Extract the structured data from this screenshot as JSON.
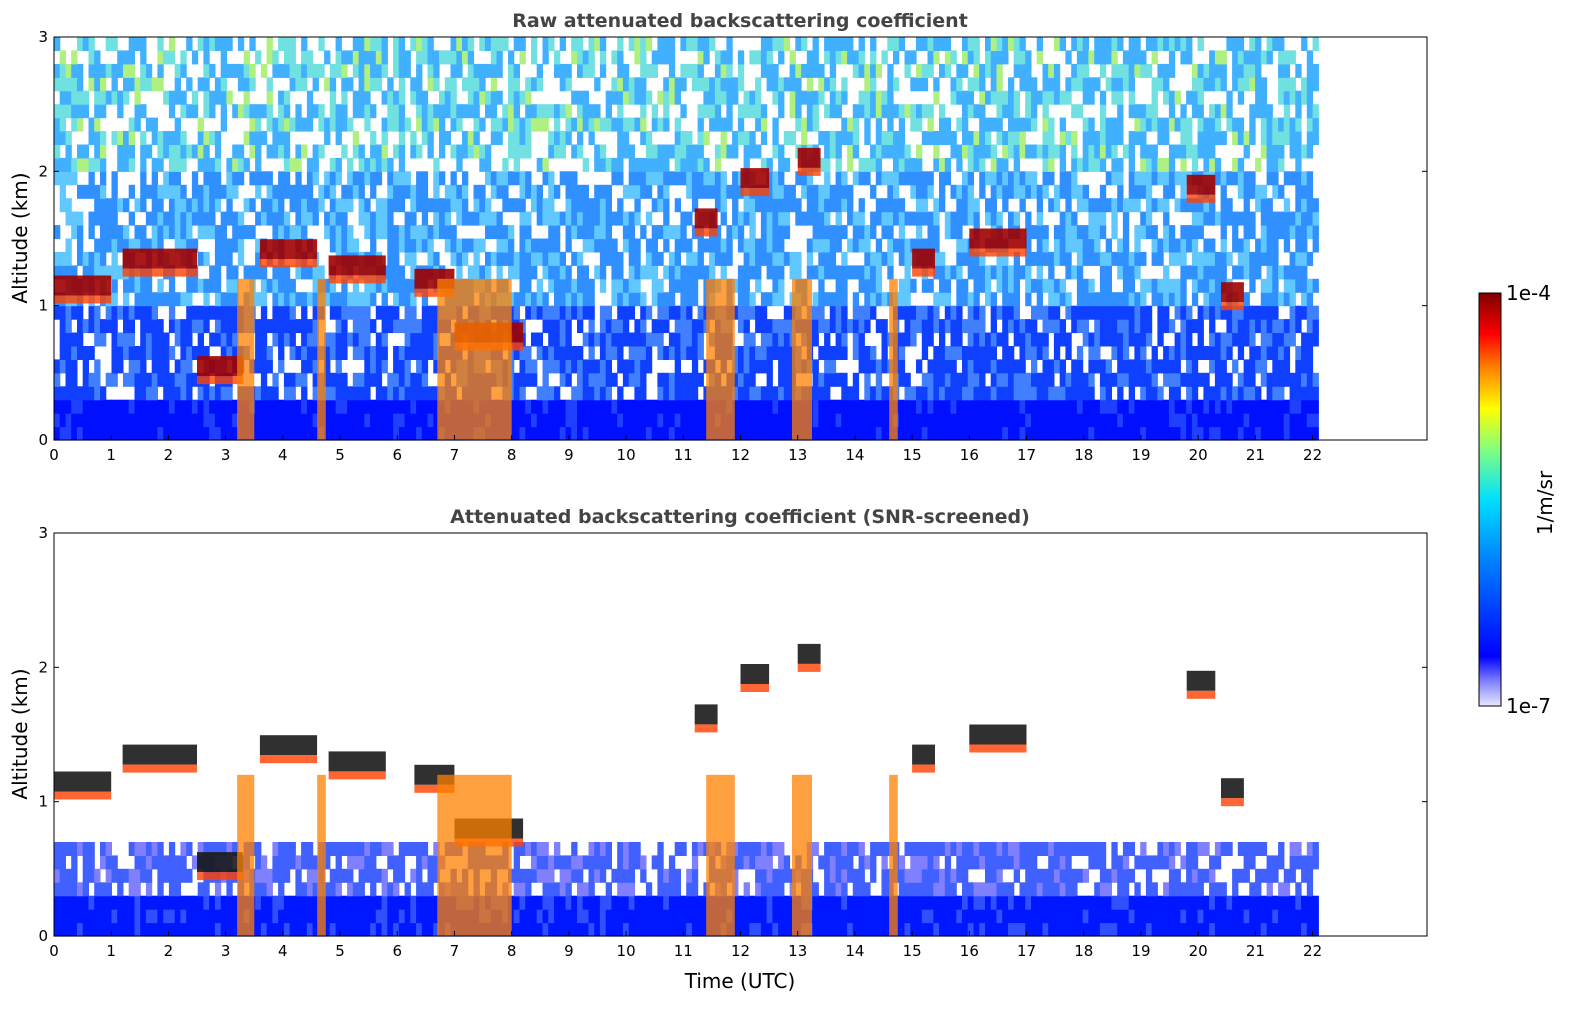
{
  "chart_data": [
    {
      "type": "heatmap",
      "title": "Raw attenuated backscattering coefficient",
      "xlabel": "",
      "ylabel": "Altitude (km)",
      "xlim": [
        0,
        24
      ],
      "ylim": [
        0,
        3
      ],
      "x_ticks": [
        0,
        1,
        2,
        3,
        4,
        5,
        6,
        7,
        8,
        9,
        10,
        11,
        12,
        13,
        14,
        15,
        16,
        17,
        18,
        19,
        20,
        21,
        22
      ],
      "y_ticks": [
        0,
        1,
        2,
        3
      ],
      "data_end_hour": 22.1,
      "grid": false,
      "features": [
        {
          "t_start": 0.0,
          "t_end": 1.0,
          "altitude_km": 1.15
        },
        {
          "t_start": 1.2,
          "t_end": 2.5,
          "altitude_km": 1.35
        },
        {
          "t_start": 2.5,
          "t_end": 3.3,
          "altitude_km": 0.55
        },
        {
          "t_start": 3.6,
          "t_end": 4.6,
          "altitude_km": 1.42
        },
        {
          "t_start": 4.8,
          "t_end": 5.8,
          "altitude_km": 1.3
        },
        {
          "t_start": 6.3,
          "t_end": 7.0,
          "altitude_km": 1.2
        },
        {
          "t_start": 7.0,
          "t_end": 8.2,
          "altitude_km": 0.8
        },
        {
          "t_start": 11.2,
          "t_end": 11.6,
          "altitude_km": 1.65
        },
        {
          "t_start": 12.0,
          "t_end": 12.5,
          "altitude_km": 1.95
        },
        {
          "t_start": 13.0,
          "t_end": 13.4,
          "altitude_km": 2.1
        },
        {
          "t_start": 15.0,
          "t_end": 15.4,
          "altitude_km": 1.35
        },
        {
          "t_start": 16.0,
          "t_end": 17.0,
          "altitude_km": 1.5
        },
        {
          "t_start": 19.8,
          "t_end": 20.3,
          "altitude_km": 1.9
        },
        {
          "t_start": 20.4,
          "t_end": 20.8,
          "altitude_km": 1.1
        }
      ]
    },
    {
      "type": "heatmap",
      "title": "Attenuated backscattering coefficient (SNR-screened)",
      "xlabel": "Time (UTC)",
      "ylabel": "Altitude (km)",
      "xlim": [
        0,
        24
      ],
      "ylim": [
        0,
        3
      ],
      "x_ticks": [
        0,
        1,
        2,
        3,
        4,
        5,
        6,
        7,
        8,
        9,
        10,
        11,
        12,
        13,
        14,
        15,
        16,
        17,
        18,
        19,
        20,
        21,
        22
      ],
      "y_ticks": [
        0,
        1,
        2,
        3
      ],
      "data_end_hour": 22.1,
      "grid": false
    }
  ],
  "colorbar": {
    "label": "1/m/sr",
    "max_label": "1e-4",
    "min_label": "1e-7",
    "scale": "log",
    "colors": [
      "#e8e8ff",
      "#8080ff",
      "#0000ff",
      "#0080ff",
      "#00e0ff",
      "#80ff80",
      "#ffff00",
      "#ff8000",
      "#ff0000",
      "#800000"
    ]
  }
}
